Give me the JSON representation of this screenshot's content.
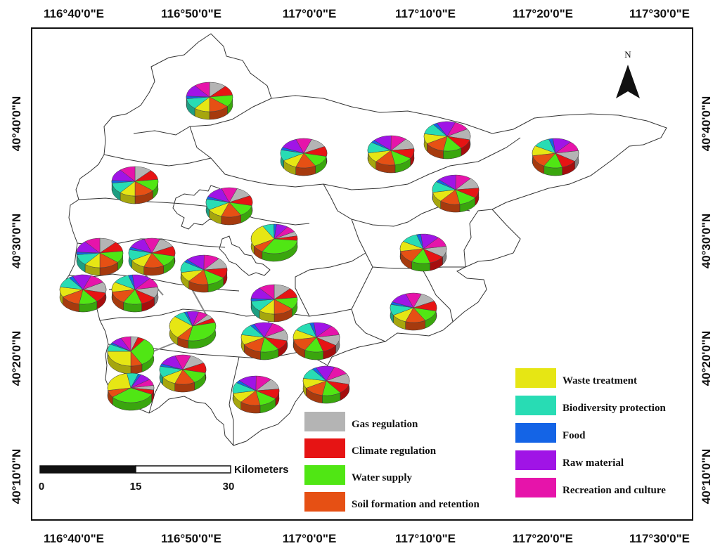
{
  "map": {
    "top_ticks": [
      "116°40'0\"E",
      "116°50'0\"E",
      "117°0'0\"E",
      "117°10'0\"E",
      "117°20'0\"E",
      "117°30'0\"E"
    ],
    "bottom_ticks": [
      "116°40'0\"E",
      "116°50'0\"E",
      "117°0'0\"E",
      "117°10'0\"E",
      "117°20'0\"E",
      "117°30'0\"E"
    ],
    "left_ticks": [
      "40°40'0\"N",
      "40°30'0\"N",
      "40°20'0\"N",
      "40°10'0\"N"
    ],
    "right_ticks": [
      "40°40'0\"N",
      "40°30'0\"N",
      "40°20'0\"N",
      "40°10'0\"N"
    ],
    "north_label": "N",
    "scale": {
      "unit": "Kilometers",
      "ticks": [
        "0",
        "15",
        "30"
      ]
    }
  },
  "legend": {
    "items": [
      {
        "key": "gas",
        "label": "Gas regulation",
        "color": "#b4b4b4"
      },
      {
        "key": "climate",
        "label": "Climate regulation",
        "color": "#e61414"
      },
      {
        "key": "water",
        "label": "Water supply",
        "color": "#50e614"
      },
      {
        "key": "soil",
        "label": "Soil formation and retention",
        "color": "#e65014"
      },
      {
        "key": "waste",
        "label": "Waste treatment",
        "color": "#e6e614"
      },
      {
        "key": "bio",
        "label": "Biodiversity protection",
        "color": "#28dcb4"
      },
      {
        "key": "food",
        "label": "Food",
        "color": "#1464e6"
      },
      {
        "key": "raw",
        "label": "Raw material",
        "color": "#a014e6"
      },
      {
        "key": "rec",
        "label": "Recreation and culture",
        "color": "#e614aa"
      }
    ]
  },
  "chart_data": {
    "type": "pie",
    "categories": [
      "Gas regulation",
      "Climate regulation",
      "Water supply",
      "Soil formation and retention",
      "Waste treatment",
      "Biodiversity protection",
      "Food",
      "Raw material",
      "Recreation and culture"
    ],
    "standard_shares": [
      0.12,
      0.11,
      0.13,
      0.14,
      0.11,
      0.12,
      0.03,
      0.13,
      0.11
    ],
    "water_heavy_shares": [
      0.05,
      0.05,
      0.32,
      0.08,
      0.25,
      0.08,
      0.02,
      0.08,
      0.07
    ],
    "pies": 24
  }
}
